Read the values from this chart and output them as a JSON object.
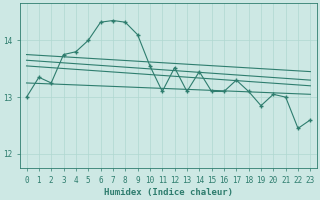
{
  "xlabel": "Humidex (Indice chaleur)",
  "bg_color": "#cde8e4",
  "line_color": "#2e7d6e",
  "grid_color": "#b0d8d0",
  "xlim": [
    -0.5,
    23.5
  ],
  "ylim": [
    11.75,
    14.65
  ],
  "yticks": [
    12,
    13,
    14
  ],
  "xticks": [
    0,
    1,
    2,
    3,
    4,
    5,
    6,
    7,
    8,
    9,
    10,
    11,
    12,
    13,
    14,
    15,
    16,
    17,
    18,
    19,
    20,
    21,
    22,
    23
  ],
  "main_data": [
    13.0,
    13.35,
    13.25,
    13.75,
    13.8,
    14.0,
    14.32,
    14.35,
    14.32,
    14.1,
    13.55,
    13.1,
    13.52,
    13.1,
    13.45,
    13.1,
    13.1,
    13.3,
    13.1,
    12.85,
    13.05,
    13.0,
    12.45,
    12.6
  ],
  "trend1_start": 13.25,
  "trend1_end": 13.05,
  "trend2_start": 13.55,
  "trend2_end": 13.2,
  "trend3_start": 13.65,
  "trend3_end": 13.3,
  "trend4_start": 13.75,
  "trend4_end": 13.45
}
